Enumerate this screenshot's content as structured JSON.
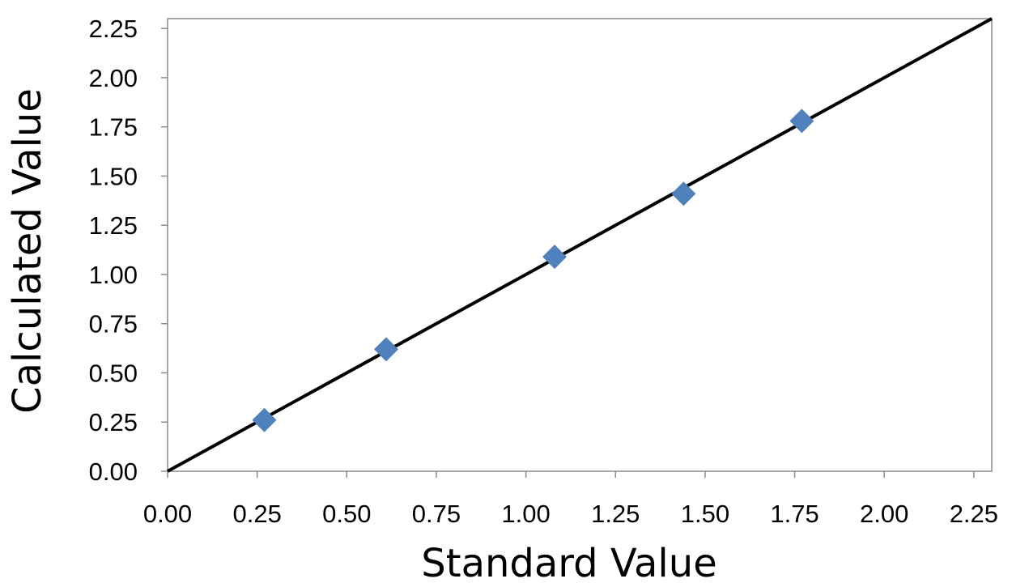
{
  "chart_data": {
    "type": "scatter",
    "title": "",
    "xlabel": "Standard Value",
    "ylabel": "Calculated Value",
    "xlim": [
      0,
      2.3
    ],
    "ylim": [
      0,
      2.3
    ],
    "x_ticks": [
      "0.00",
      "0.25",
      "0.50",
      "0.75",
      "1.00",
      "1.25",
      "1.50",
      "1.75",
      "2.00",
      "2.25"
    ],
    "y_ticks": [
      "0.00",
      "0.25",
      "0.50",
      "0.75",
      "1.00",
      "1.25",
      "1.50",
      "1.75",
      "2.00",
      "2.25"
    ],
    "grid": false,
    "legend": "none",
    "series": [
      {
        "marker": "diamond",
        "color": "#4f81bd",
        "x": [
          0.27,
          0.61,
          1.08,
          1.44,
          1.77
        ],
        "y": [
          0.26,
          0.62,
          1.09,
          1.41,
          1.78
        ]
      }
    ],
    "reference_line": {
      "from": [
        0,
        0
      ],
      "to": [
        2.3,
        2.3
      ],
      "color": "#000000"
    }
  }
}
